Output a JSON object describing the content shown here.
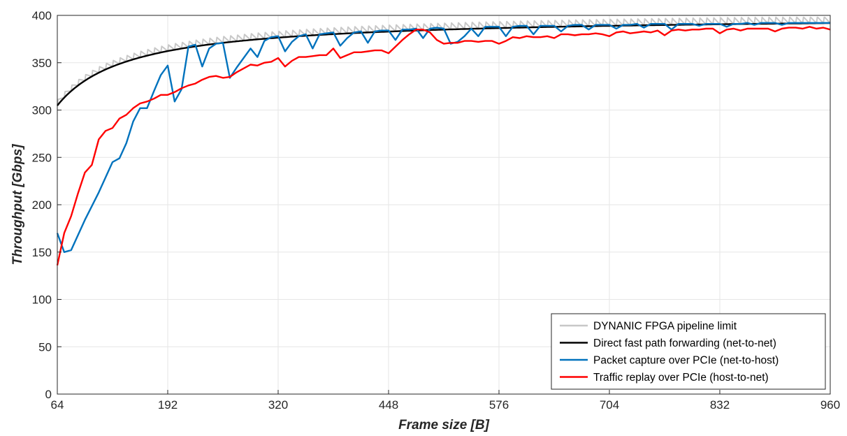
{
  "chart_data": {
    "type": "line",
    "xlabel": "Frame size [B]",
    "ylabel": "Throughput [Gbps]",
    "xlim": [
      64,
      960
    ],
    "ylim": [
      0,
      400
    ],
    "xticks": [
      64,
      192,
      320,
      448,
      576,
      704,
      832,
      960
    ],
    "yticks": [
      0,
      50,
      100,
      150,
      200,
      250,
      300,
      350,
      400
    ],
    "grid": true,
    "legend_position": "bottom-right",
    "series": [
      {
        "name": "DYNANIC FPGA pipeline limit",
        "color": "#c8c8c8",
        "generator": "sawtooth",
        "x": [
          64,
          960
        ],
        "points": []
      },
      {
        "name": "Direct fast path forwarding (net-to-net)",
        "color": "#000000",
        "generator": "ethernet",
        "x": [
          64,
          960
        ],
        "points": []
      },
      {
        "name": "Packet capture over PCIe (net-to-host)",
        "color": "#0072bd",
        "points": [
          [
            64,
            170
          ],
          [
            72,
            150
          ],
          [
            80,
            152
          ],
          [
            96,
            184
          ],
          [
            112,
            213
          ],
          [
            128,
            245
          ],
          [
            136,
            249
          ],
          [
            144,
            265
          ],
          [
            152,
            288
          ],
          [
            160,
            302
          ],
          [
            168,
            302
          ],
          [
            176,
            320
          ],
          [
            184,
            337
          ],
          [
            192,
            347
          ],
          [
            200,
            309
          ],
          [
            208,
            322
          ],
          [
            216,
            367
          ],
          [
            224,
            369
          ],
          [
            232,
            346
          ],
          [
            240,
            365
          ],
          [
            248,
            370
          ],
          [
            256,
            371
          ],
          [
            264,
            334
          ],
          [
            272,
            345
          ],
          [
            288,
            365
          ],
          [
            296,
            356
          ],
          [
            304,
            373
          ],
          [
            312,
            377
          ],
          [
            320,
            378
          ],
          [
            328,
            362
          ],
          [
            336,
            372
          ],
          [
            344,
            378
          ],
          [
            352,
            380
          ],
          [
            360,
            365
          ],
          [
            368,
            380
          ],
          [
            376,
            381
          ],
          [
            384,
            382
          ],
          [
            392,
            368
          ],
          [
            400,
            376
          ],
          [
            408,
            382
          ],
          [
            416,
            383
          ],
          [
            424,
            371
          ],
          [
            432,
            383
          ],
          [
            440,
            384
          ],
          [
            448,
            384
          ],
          [
            456,
            374
          ],
          [
            464,
            385
          ],
          [
            472,
            385
          ],
          [
            480,
            386
          ],
          [
            488,
            376
          ],
          [
            496,
            386
          ],
          [
            504,
            387
          ],
          [
            512,
            386
          ],
          [
            520,
            370
          ],
          [
            528,
            372
          ],
          [
            536,
            378
          ],
          [
            544,
            386
          ],
          [
            552,
            378
          ],
          [
            560,
            388
          ],
          [
            568,
            388
          ],
          [
            576,
            388
          ],
          [
            584,
            378
          ],
          [
            592,
            388
          ],
          [
            600,
            389
          ],
          [
            608,
            389
          ],
          [
            616,
            380
          ],
          [
            624,
            389
          ],
          [
            632,
            389
          ],
          [
            640,
            389
          ],
          [
            648,
            383
          ],
          [
            656,
            389
          ],
          [
            664,
            390
          ],
          [
            672,
            390
          ],
          [
            680,
            385
          ],
          [
            688,
            390
          ],
          [
            696,
            390
          ],
          [
            704,
            390
          ],
          [
            712,
            386
          ],
          [
            720,
            390
          ],
          [
            728,
            390
          ],
          [
            736,
            391
          ],
          [
            744,
            387
          ],
          [
            752,
            391
          ],
          [
            760,
            391
          ],
          [
            768,
            391
          ],
          [
            776,
            385
          ],
          [
            784,
            391
          ],
          [
            792,
            391
          ],
          [
            800,
            391
          ],
          [
            808,
            389
          ],
          [
            816,
            391
          ],
          [
            824,
            391
          ],
          [
            832,
            391
          ],
          [
            840,
            388
          ],
          [
            848,
            391
          ],
          [
            856,
            391
          ],
          [
            864,
            392
          ],
          [
            872,
            390
          ],
          [
            880,
            392
          ],
          [
            888,
            392
          ],
          [
            896,
            392
          ],
          [
            904,
            390
          ],
          [
            912,
            392
          ],
          [
            920,
            392
          ],
          [
            928,
            392
          ],
          [
            936,
            392
          ],
          [
            944,
            392
          ],
          [
            952,
            392
          ],
          [
            960,
            392
          ]
        ]
      },
      {
        "name": "Traffic replay over PCIe (host-to-net)",
        "color": "#ff0000",
        "points": [
          [
            64,
            136
          ],
          [
            72,
            170
          ],
          [
            80,
            188
          ],
          [
            88,
            212
          ],
          [
            96,
            234
          ],
          [
            104,
            242
          ],
          [
            112,
            269
          ],
          [
            120,
            278
          ],
          [
            128,
            281
          ],
          [
            136,
            291
          ],
          [
            144,
            295
          ],
          [
            152,
            302
          ],
          [
            160,
            307
          ],
          [
            168,
            309
          ],
          [
            176,
            312
          ],
          [
            184,
            316
          ],
          [
            192,
            316
          ],
          [
            200,
            319
          ],
          [
            208,
            323
          ],
          [
            216,
            326
          ],
          [
            224,
            328
          ],
          [
            232,
            332
          ],
          [
            240,
            335
          ],
          [
            248,
            336
          ],
          [
            256,
            334
          ],
          [
            264,
            335
          ],
          [
            272,
            340
          ],
          [
            280,
            344
          ],
          [
            288,
            348
          ],
          [
            296,
            347
          ],
          [
            304,
            350
          ],
          [
            312,
            351
          ],
          [
            320,
            355
          ],
          [
            328,
            346
          ],
          [
            336,
            352
          ],
          [
            344,
            356
          ],
          [
            352,
            356
          ],
          [
            360,
            357
          ],
          [
            368,
            358
          ],
          [
            376,
            358
          ],
          [
            384,
            365
          ],
          [
            392,
            355
          ],
          [
            400,
            358
          ],
          [
            408,
            361
          ],
          [
            416,
            361
          ],
          [
            424,
            362
          ],
          [
            432,
            363
          ],
          [
            440,
            363
          ],
          [
            448,
            360
          ],
          [
            456,
            367
          ],
          [
            464,
            374
          ],
          [
            472,
            380
          ],
          [
            480,
            385
          ],
          [
            488,
            385
          ],
          [
            496,
            382
          ],
          [
            504,
            374
          ],
          [
            512,
            370
          ],
          [
            520,
            371
          ],
          [
            528,
            371
          ],
          [
            536,
            373
          ],
          [
            544,
            373
          ],
          [
            552,
            372
          ],
          [
            560,
            373
          ],
          [
            568,
            373
          ],
          [
            576,
            370
          ],
          [
            584,
            373
          ],
          [
            592,
            377
          ],
          [
            600,
            376
          ],
          [
            608,
            378
          ],
          [
            616,
            377
          ],
          [
            624,
            377
          ],
          [
            632,
            378
          ],
          [
            640,
            376
          ],
          [
            648,
            380
          ],
          [
            656,
            380
          ],
          [
            664,
            379
          ],
          [
            672,
            380
          ],
          [
            680,
            380
          ],
          [
            688,
            381
          ],
          [
            696,
            380
          ],
          [
            704,
            378
          ],
          [
            712,
            382
          ],
          [
            720,
            383
          ],
          [
            728,
            381
          ],
          [
            736,
            382
          ],
          [
            744,
            383
          ],
          [
            752,
            382
          ],
          [
            760,
            384
          ],
          [
            768,
            379
          ],
          [
            776,
            384
          ],
          [
            784,
            385
          ],
          [
            792,
            384
          ],
          [
            800,
            385
          ],
          [
            808,
            385
          ],
          [
            816,
            386
          ],
          [
            824,
            386
          ],
          [
            832,
            381
          ],
          [
            840,
            385
          ],
          [
            848,
            386
          ],
          [
            856,
            384
          ],
          [
            864,
            386
          ],
          [
            872,
            386
          ],
          [
            880,
            386
          ],
          [
            888,
            386
          ],
          [
            896,
            383
          ],
          [
            904,
            386
          ],
          [
            912,
            387
          ],
          [
            920,
            387
          ],
          [
            928,
            386
          ],
          [
            936,
            388
          ],
          [
            944,
            386
          ],
          [
            952,
            387
          ],
          [
            960,
            385
          ]
        ]
      }
    ]
  }
}
